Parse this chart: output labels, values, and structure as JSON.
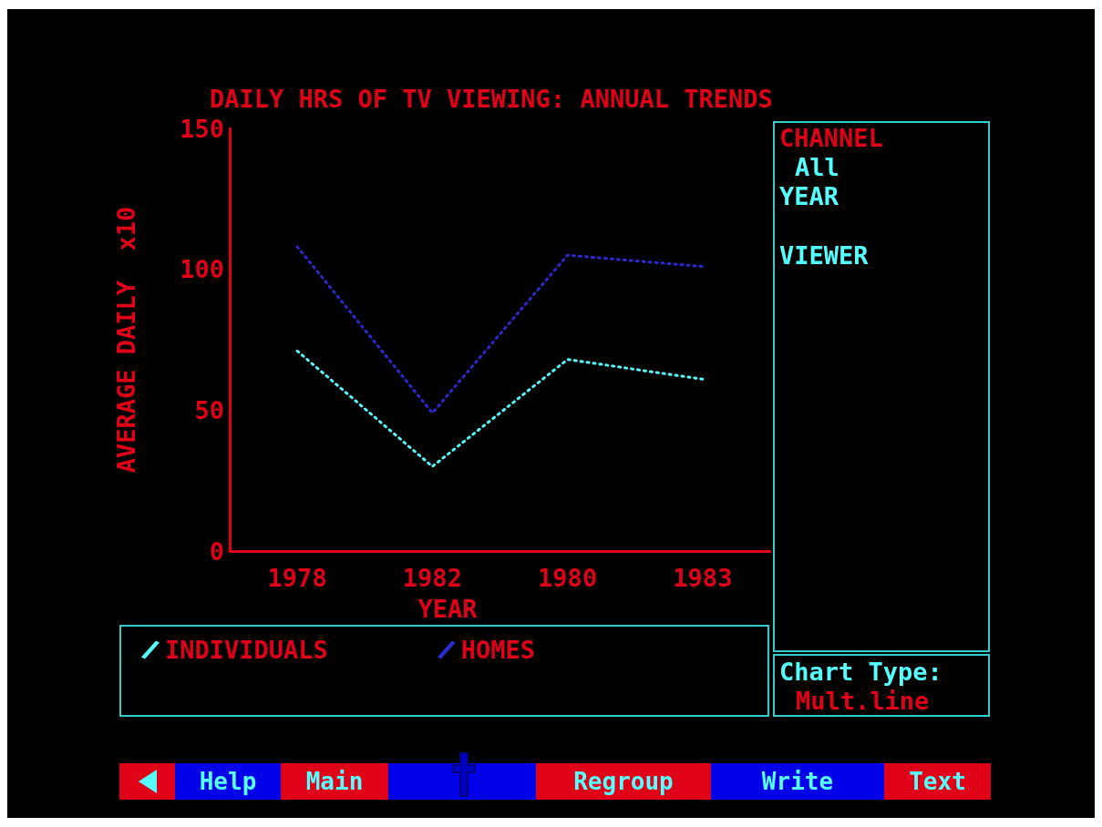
{
  "chart_data": {
    "type": "line",
    "title": "DAILY HRS OF TV VIEWING: ANNUAL TRENDS",
    "xlabel": "YEAR",
    "ylabel": "AVERAGE DAILY  x10",
    "categories": [
      "1978",
      "1982",
      "1980",
      "1983"
    ],
    "series": [
      {
        "name": "INDIVIDUALS",
        "color": "#55ffff",
        "values": [
          71,
          30,
          68,
          61
        ]
      },
      {
        "name": "HOMES",
        "color": "#2a2ad0",
        "values": [
          108,
          49,
          105,
          101
        ]
      }
    ],
    "ylim": [
      0,
      150
    ],
    "yticks": [
      0,
      50,
      100,
      150
    ],
    "grid": false,
    "legend": "bottom",
    "marker": "none",
    "line_style": "dotted",
    "annotations": [
      "CHANNEL",
      "All",
      "YEAR",
      "VIEWER",
      "Chart Type:",
      "Mult.line",
      "Help",
      "Main",
      "Regroup",
      "Write",
      "Text"
    ]
  }
}
